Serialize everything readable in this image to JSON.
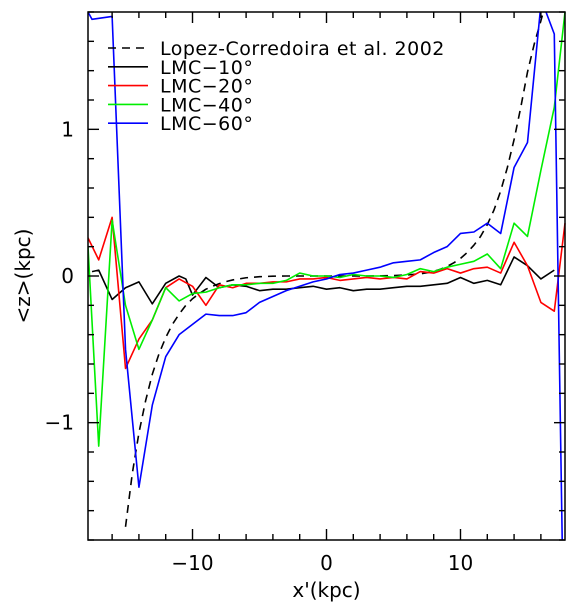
{
  "chart_data": {
    "type": "line",
    "xlabel": "x'(kpc)",
    "ylabel": "<z>(kpc)",
    "xlim": [
      -17.8,
      17.8
    ],
    "ylim": [
      -1.8,
      1.8
    ],
    "grid": false,
    "legend_position": "top-left",
    "x_ticks": [
      -10,
      0,
      10
    ],
    "x_tick_labels": [
      "−10",
      "0",
      "10"
    ],
    "y_ticks": [
      -1,
      0,
      1
    ],
    "y_tick_labels": [
      "−1",
      "0",
      "1"
    ],
    "series": [
      {
        "name": "Lopez-Corredoira et al. 2002",
        "color": "#000000",
        "dash": "8,6",
        "x": [
          -15.0,
          -14.5,
          -14.0,
          -13.5,
          -13.0,
          -12.5,
          -12.0,
          -11.5,
          -11.0,
          -10.5,
          -10.0,
          -9.5,
          -9.0,
          -8.5,
          -8.0,
          -7.5,
          -7.0,
          -6.0,
          -5.0,
          -4.0,
          -3.0,
          -2.0,
          -1.0,
          0.0,
          1.0,
          2.0,
          3.0,
          4.0,
          5.0,
          6.0,
          7.0,
          7.5,
          8.0,
          8.5,
          9.0,
          9.5,
          10.0,
          10.5,
          11.0,
          11.5,
          12.0,
          12.5,
          13.0,
          13.5,
          14.0,
          14.5,
          15.0,
          15.5,
          16.0,
          16.3
        ],
        "y": [
          -1.71,
          -1.35,
          -1.07,
          -0.85,
          -0.67,
          -0.53,
          -0.42,
          -0.33,
          -0.26,
          -0.2,
          -0.155,
          -0.12,
          -0.09,
          -0.07,
          -0.052,
          -0.038,
          -0.027,
          -0.012,
          -0.005,
          -0.001,
          0.0,
          0.0,
          0.0,
          0.0,
          0.0,
          0.0,
          0.0,
          0.001,
          0.003,
          0.007,
          0.015,
          0.022,
          0.032,
          0.046,
          0.065,
          0.09,
          0.12,
          0.16,
          0.21,
          0.27,
          0.35,
          0.45,
          0.58,
          0.74,
          0.93,
          1.15,
          1.39,
          1.58,
          1.74,
          1.84
        ]
      },
      {
        "name": "LMC−10°",
        "color": "#000000",
        "x": [
          -17.5,
          -17.0,
          -16.0,
          -15.0,
          -14.0,
          -13.0,
          -12.0,
          -11.0,
          -10.5,
          -10.0,
          -9.0,
          -8.0,
          -7.0,
          -6.0,
          -5.0,
          -4.0,
          -3.0,
          -2.0,
          -1.0,
          0.0,
          1.0,
          2.0,
          3.0,
          4.0,
          5.0,
          6.0,
          7.0,
          8.0,
          9.0,
          10.0,
          11.0,
          12.0,
          13.0,
          14.0,
          15.0,
          16.0,
          17.0
        ],
        "y": [
          0.03,
          0.04,
          -0.16,
          -0.08,
          -0.04,
          -0.19,
          -0.05,
          0.0,
          -0.02,
          -0.13,
          -0.01,
          -0.08,
          -0.06,
          -0.07,
          -0.1,
          -0.09,
          -0.09,
          -0.08,
          -0.07,
          -0.09,
          -0.08,
          -0.1,
          -0.09,
          -0.09,
          -0.08,
          -0.07,
          -0.07,
          -0.06,
          -0.05,
          -0.01,
          -0.05,
          -0.03,
          -0.06,
          0.13,
          0.07,
          -0.02,
          0.04
        ]
      },
      {
        "name": "LMC−20°",
        "color": "#ff0000",
        "x": [
          -17.8,
          -17.0,
          -16.0,
          -15.0,
          -14.0,
          -13.0,
          -12.0,
          -11.0,
          -10.0,
          -9.0,
          -8.0,
          -7.0,
          -6.0,
          -5.0,
          -4.0,
          -3.0,
          -2.0,
          -1.0,
          0.0,
          1.0,
          2.0,
          3.0,
          4.0,
          5.0,
          6.0,
          7.0,
          8.0,
          9.0,
          10.0,
          11.0,
          12.0,
          13.0,
          14.0,
          15.0,
          16.0,
          17.0,
          17.8
        ],
        "y": [
          0.26,
          0.11,
          0.4,
          -0.63,
          -0.43,
          -0.3,
          -0.08,
          -0.02,
          -0.07,
          -0.2,
          -0.06,
          -0.08,
          -0.05,
          -0.05,
          -0.04,
          -0.04,
          -0.02,
          -0.02,
          -0.01,
          -0.03,
          -0.02,
          -0.01,
          -0.02,
          -0.01,
          -0.02,
          0.03,
          0.02,
          0.05,
          0.02,
          0.05,
          0.06,
          0.02,
          0.23,
          0.07,
          -0.18,
          -0.24,
          0.36
        ]
      },
      {
        "name": "LMC−40°",
        "color": "#00ee00",
        "x": [
          -17.8,
          -17.0,
          -16.0,
          -15.0,
          -14.0,
          -13.0,
          -12.0,
          -11.0,
          -10.0,
          -9.0,
          -8.0,
          -7.0,
          -6.0,
          -5.0,
          -4.0,
          -3.0,
          -2.0,
          -1.0,
          0.0,
          1.0,
          2.0,
          3.0,
          4.0,
          5.0,
          6.0,
          7.0,
          8.0,
          9.0,
          10.0,
          11.0,
          12.0,
          13.0,
          14.0,
          15.0,
          16.0,
          17.0,
          17.8
        ],
        "y": [
          0.2,
          -1.16,
          0.38,
          -0.2,
          -0.5,
          -0.3,
          -0.08,
          -0.17,
          -0.12,
          -0.11,
          -0.08,
          -0.06,
          -0.06,
          -0.05,
          -0.05,
          -0.03,
          0.02,
          0.0,
          0.0,
          -0.01,
          0.01,
          0.0,
          0.0,
          -0.01,
          0.01,
          0.05,
          0.03,
          0.06,
          0.08,
          0.1,
          0.15,
          0.05,
          0.36,
          0.27,
          0.72,
          1.15,
          1.8
        ]
      },
      {
        "name": "LMC−60°",
        "color": "#0000ff",
        "x": [
          -17.8,
          -17.5,
          -16.0,
          -15.0,
          -14.0,
          -13.0,
          -12.0,
          -11.0,
          -10.0,
          -9.0,
          -8.0,
          -7.0,
          -6.0,
          -5.0,
          -4.0,
          -3.0,
          -2.0,
          -1.0,
          0.0,
          1.0,
          2.0,
          3.0,
          4.0,
          5.0,
          6.0,
          7.0,
          8.0,
          9.0,
          10.0,
          11.0,
          12.0,
          13.0,
          14.0,
          15.0,
          16.0,
          16.3,
          17.0,
          17.6
        ],
        "y": [
          1.8,
          1.75,
          1.77,
          -0.5,
          -1.44,
          -0.88,
          -0.55,
          -0.4,
          -0.33,
          -0.26,
          -0.27,
          -0.27,
          -0.25,
          -0.18,
          -0.14,
          -0.1,
          -0.07,
          -0.04,
          -0.02,
          0.01,
          0.02,
          0.04,
          0.06,
          0.09,
          0.1,
          0.11,
          0.16,
          0.2,
          0.29,
          0.3,
          0.36,
          0.29,
          0.74,
          0.91,
          1.85,
          1.82,
          1.65,
          -1.85
        ]
      }
    ]
  }
}
